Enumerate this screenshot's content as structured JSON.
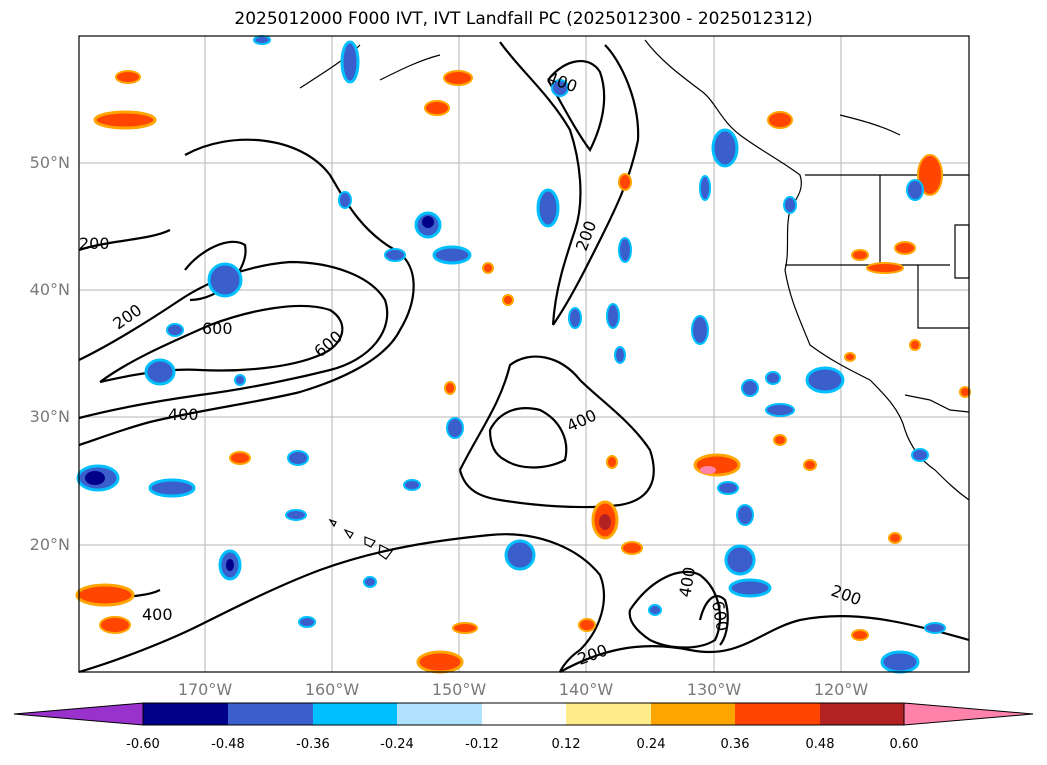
{
  "title": "2025012000 F000 IVT, IVT Landfall PC (2025012300 - 2025012312)",
  "lat_labels": [
    "50°N",
    "40°N",
    "30°N",
    "20°N"
  ],
  "lon_labels": [
    "170°W",
    "160°W",
    "150°W",
    "140°W",
    "130°W",
    "120°W"
  ],
  "contour_labels": [
    "400",
    "200",
    "200",
    "200",
    "600",
    "600",
    "400",
    "400",
    "400",
    "400",
    "600",
    "200",
    "200"
  ],
  "colorbar": {
    "ticks": [
      "-0.60",
      "-0.48",
      "-0.36",
      "-0.24",
      "-0.12",
      "0.12",
      "0.24",
      "0.36",
      "0.48",
      "0.60"
    ],
    "colors": [
      "#9932cc",
      "#00008b",
      "#3a5fcd",
      "#00bfff",
      "#b0e2ff",
      "#ffffff",
      "#ffec8b",
      "#ffa500",
      "#ff4500",
      "#b22222",
      "#ff82ab"
    ]
  },
  "map": {
    "extent_lon": [
      "180°W",
      "110°W"
    ],
    "extent_lat": [
      "10°N",
      "60°N"
    ],
    "gridlines": true
  }
}
